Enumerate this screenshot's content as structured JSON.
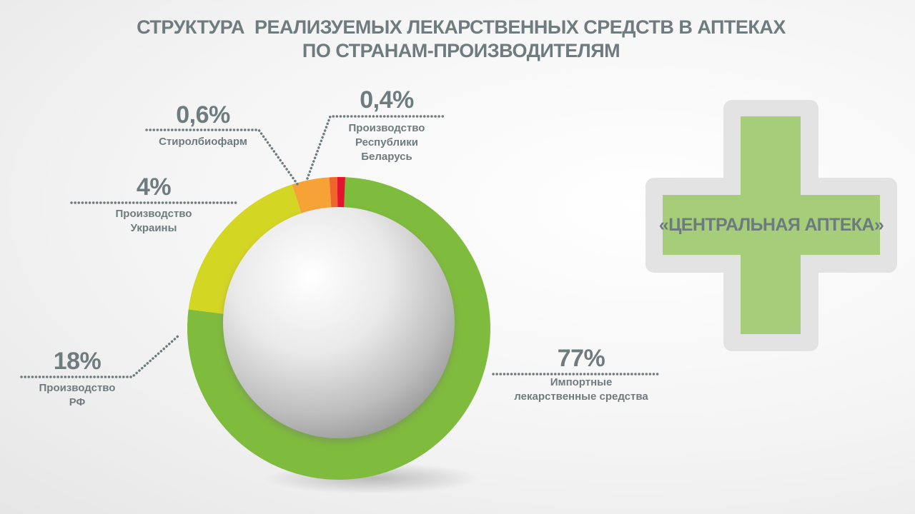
{
  "title": {
    "line1": "СТРУКТУРА  РЕАЛИЗУЕМЫХ ЛЕКАРСТВЕННЫХ СРЕДСТВ В АПТЕКАХ",
    "line2": "ПО СТРАНАМ-ПРОИЗВОДИТЕЛЯМ"
  },
  "brand": {
    "name": "«ЦЕНТРАЛЬНАЯ АПТЕКА»"
  },
  "chart_data": {
    "type": "pie",
    "title": "СТРУКТУРА  РЕАЛИЗУЕМЫХ ЛЕКАРСТВЕННЫХ СРЕДСТВ В АПТЕКАХ ПО СТРАНАМ-ПРОИЗВОДИТЕЛЯМ",
    "slices": [
      {
        "key": "import",
        "label": "Импортные лекарственные средства",
        "caption": [
          "Импортные",
          "лекарственные средства"
        ],
        "value": 77,
        "value_label": "77%",
        "color": "#7fbb3d"
      },
      {
        "key": "rf",
        "label": "Производство РФ",
        "caption": [
          "Производство",
          "РФ"
        ],
        "value": 18,
        "value_label": "18%",
        "color": "#d4d624"
      },
      {
        "key": "ukraine",
        "label": "Производство Украины",
        "caption": [
          "Производство",
          "Украины"
        ],
        "value": 4,
        "value_label": "4%",
        "color": "#f7a236"
      },
      {
        "key": "stirol",
        "label": "Стиролбиофарм",
        "caption": [
          "Стиролбиофарм"
        ],
        "value": 0.6,
        "value_label": "0,6%",
        "color": "#f0652b"
      },
      {
        "key": "belarus",
        "label": "Производство Республики Беларусь",
        "caption": [
          "Производство",
          "Республики",
          "Беларусь"
        ],
        "value": 0.4,
        "value_label": "0,4%",
        "color": "#e3142d"
      }
    ]
  }
}
